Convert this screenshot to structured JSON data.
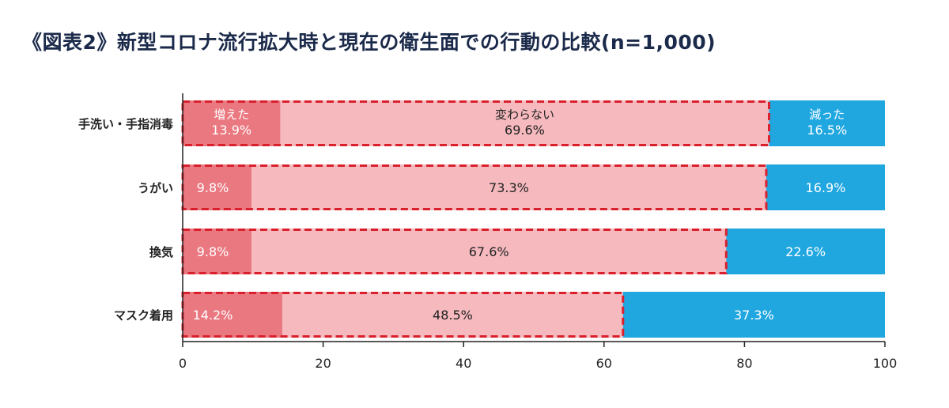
{
  "title": "《図表2》新型コロナ流行拡大時と現在の衛生面での行動の比較(n=1,000)",
  "colors": {
    "increased": "#ea7880",
    "unchanged": "#f5b9be",
    "decreased": "#21a7e0",
    "highlight_border": "#d9202c",
    "axis": "#222222",
    "title": "#1b2a4a"
  },
  "chart_data": {
    "type": "bar",
    "orientation": "horizontal",
    "stacked": true,
    "categories": [
      "手洗い・手指消毒",
      "うがい",
      "換気",
      "マスク着用"
    ],
    "series": [
      {
        "name": "増えた",
        "values": [
          13.9,
          9.8,
          9.8,
          14.2
        ],
        "labels": [
          "13.9%",
          "9.8%",
          "9.8%",
          "14.2%"
        ]
      },
      {
        "name": "変わらない",
        "values": [
          69.6,
          73.3,
          67.6,
          48.5
        ],
        "labels": [
          "69.6%",
          "73.3%",
          "67.6%",
          "48.5%"
        ]
      },
      {
        "name": "減った",
        "values": [
          16.5,
          16.9,
          22.6,
          37.3
        ],
        "labels": [
          "16.5%",
          "16.9%",
          "22.6%",
          "37.3%"
        ]
      }
    ],
    "xlim": [
      0,
      100
    ],
    "xticks": [
      0,
      20,
      40,
      60,
      80,
      100
    ],
    "xtick_labels": [
      "0",
      "20",
      "40",
      "60",
      "80",
      "100"
    ],
    "legend": "inline labels in first row",
    "grid": false
  }
}
